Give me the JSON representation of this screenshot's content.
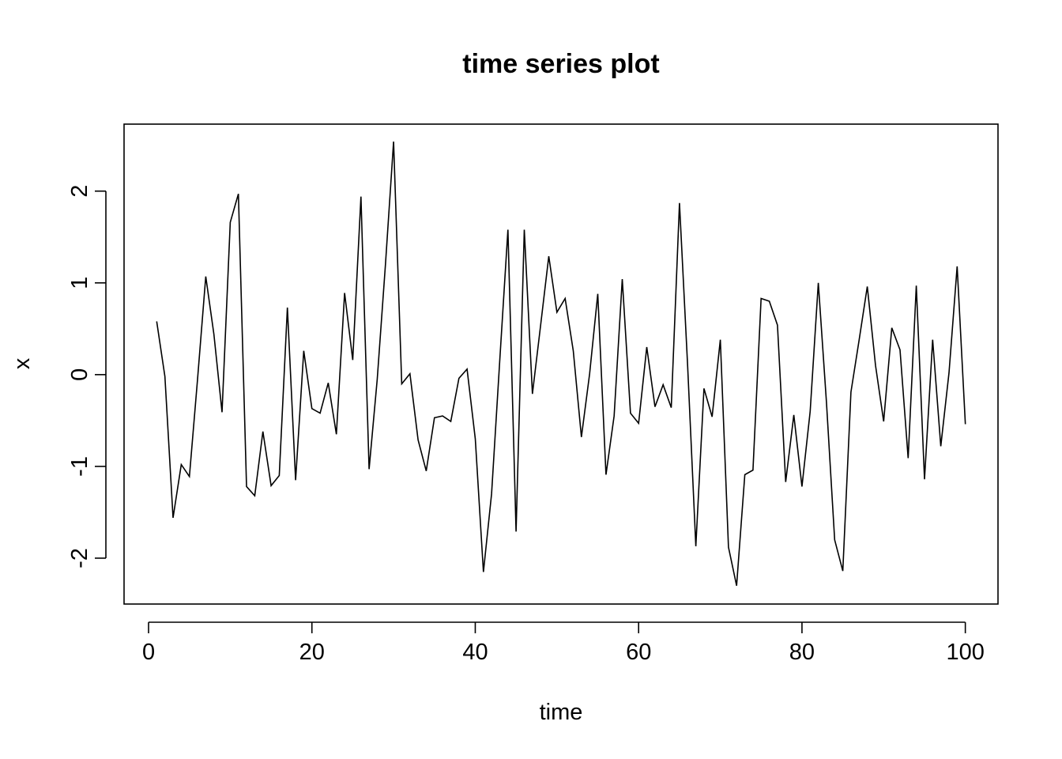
{
  "chart_data": {
    "type": "line",
    "title": "time series plot",
    "xlabel": "time",
    "ylabel": "x",
    "xlim": [
      -3,
      104
    ],
    "ylim": [
      -2.5,
      2.73
    ],
    "x_ticks": [
      0,
      20,
      40,
      60,
      80,
      100
    ],
    "y_ticks": [
      -2,
      -1,
      0,
      1,
      2
    ],
    "x_tick_labels": [
      "0",
      "20",
      "40",
      "60",
      "80",
      "100"
    ],
    "y_tick_labels": [
      "-2",
      "-1",
      "0",
      "1",
      "2"
    ],
    "grid": false,
    "line_color": "#000000",
    "x": [
      1,
      2,
      3,
      4,
      5,
      6,
      7,
      8,
      9,
      10,
      11,
      12,
      13,
      14,
      15,
      16,
      17,
      18,
      19,
      20,
      21,
      22,
      23,
      24,
      25,
      26,
      27,
      28,
      29,
      30,
      31,
      32,
      33,
      34,
      35,
      36,
      37,
      38,
      39,
      40,
      41,
      42,
      43,
      44,
      45,
      46,
      47,
      48,
      49,
      50,
      51,
      52,
      53,
      54,
      55,
      56,
      57,
      58,
      59,
      60,
      61,
      62,
      63,
      64,
      65,
      66,
      67,
      68,
      69,
      70,
      71,
      72,
      73,
      74,
      75,
      76,
      77,
      78,
      79,
      80,
      81,
      82,
      83,
      84,
      85,
      86,
      87,
      88,
      89,
      90,
      91,
      92,
      93,
      94,
      95,
      96,
      97,
      98,
      99,
      100
    ],
    "series": [
      {
        "values": [
          0.58,
          -0.02,
          -1.56,
          -0.98,
          -1.11,
          -0.05,
          1.07,
          0.44,
          -0.41,
          1.66,
          1.97,
          -1.22,
          -1.32,
          -0.62,
          -1.21,
          -1.1,
          0.73,
          -1.15,
          0.26,
          -0.37,
          -0.42,
          -0.09,
          -0.65,
          0.89,
          0.16,
          1.94,
          -1.03,
          -0.05,
          1.2,
          2.54,
          -0.1,
          0.01,
          -0.71,
          -1.05,
          -0.47,
          -0.45,
          -0.51,
          -0.04,
          0.06,
          -0.7,
          -2.15,
          -1.3,
          0.16,
          1.58,
          -1.71,
          1.58,
          -0.21,
          0.54,
          1.29,
          0.68,
          0.83,
          0.26,
          -0.68,
          0.01,
          0.88,
          -1.09,
          -0.45,
          1.04,
          -0.42,
          -0.53,
          0.3,
          -0.35,
          -0.11,
          -0.36,
          1.87,
          0.1,
          -1.87,
          -0.15,
          -0.46,
          0.38,
          -1.88,
          -2.3,
          -1.09,
          -1.04,
          0.83,
          0.8,
          0.54,
          -1.17,
          -0.44,
          -1.22,
          -0.4,
          1.0,
          -0.3,
          -1.8,
          -2.14,
          -0.19,
          0.38,
          0.96,
          0.1,
          -0.51,
          0.51,
          0.27,
          -0.91,
          0.97,
          -1.14,
          0.38,
          -0.78,
          0.02,
          1.18,
          -0.54
        ]
      }
    ]
  }
}
